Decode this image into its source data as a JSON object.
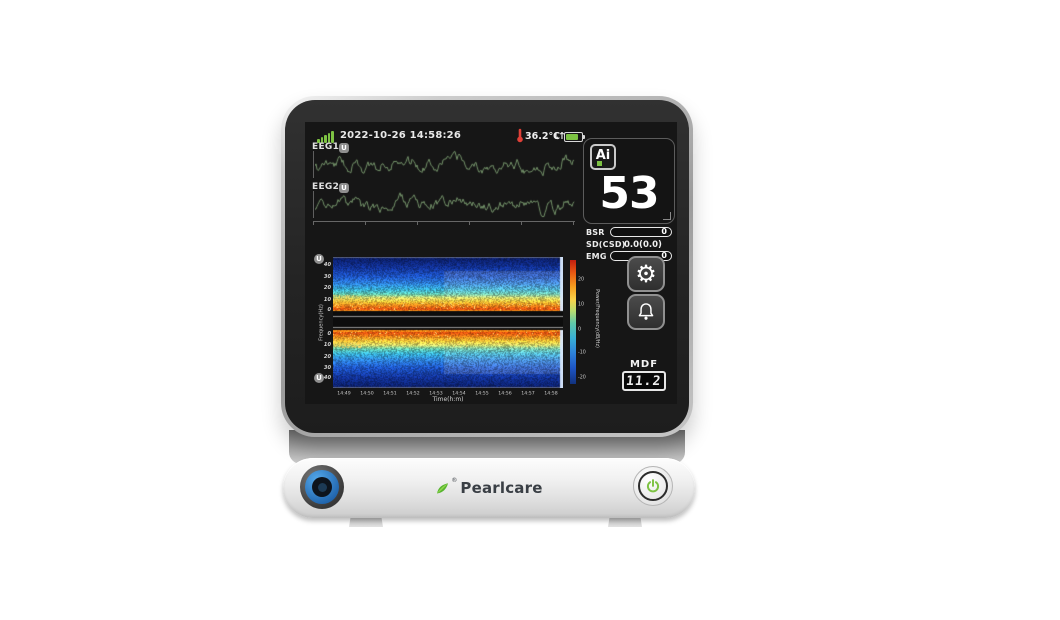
{
  "device": {
    "brand": "Pearlcare",
    "registered_mark": "®"
  },
  "status_bar": {
    "datetime": "2022-10-26 14:58:26",
    "temperature": "36.2℃",
    "sync_arrows": "↓↑"
  },
  "eeg": {
    "ch1_label": "EEG1",
    "ch2_label": "EEG2",
    "channel_icon_glyph": "U"
  },
  "ai_panel": {
    "badge": "Ai",
    "value": "53"
  },
  "metrics": {
    "rows": [
      {
        "label": "BSR",
        "value": "0"
      },
      {
        "label": "SD(CSD)",
        "value": "0.0(0.0)"
      },
      {
        "label": "EMG",
        "value": "0"
      }
    ]
  },
  "side_buttons": {
    "settings_glyph": "⚙"
  },
  "mdf": {
    "label": "MDF",
    "value": "11.2"
  },
  "spectrogram": {
    "ylabel": "Frequency(Hz)",
    "yticks_top": [
      "40",
      "30",
      "20",
      "10",
      "0"
    ],
    "yticks_bottom": [
      "0",
      "10",
      "20",
      "30",
      "40"
    ],
    "xlabel": "Time(h:m)",
    "xticks": [
      "14:49",
      "14:50",
      "14:51",
      "14:52",
      "14:53",
      "14:54",
      "14:55",
      "14:56",
      "14:57",
      "14:58"
    ],
    "colorbar_label": "Power/Frequency(dB/Hz)",
    "colorbar_ticks": [
      "20",
      "10",
      "0",
      "-10",
      "-20"
    ]
  },
  "colors": {
    "accent_green": "#7dc243",
    "alarm_red": "#e04038",
    "knob_blue": "#2f86d6",
    "screen_bg": "#161616",
    "trace_green": "#74936a"
  },
  "chart_data": [
    {
      "type": "line",
      "name": "EEG1",
      "description": "raw EEG waveform trace, unlabeled amplitude axis",
      "color": "#74936a",
      "seed": 7
    },
    {
      "type": "line",
      "name": "EEG2",
      "description": "raw EEG waveform trace, unlabeled amplitude axis",
      "color": "#74936a",
      "seed": 13
    },
    {
      "type": "heatmap",
      "name": "mirrored EEG density spectral array (EEG1 top, EEG2 bottom)",
      "xlabel": "Time(h:m)",
      "x_range": [
        "14:49",
        "14:58"
      ],
      "ylabel": "Frequency(Hz)",
      "y_range_hz": [
        0,
        47
      ],
      "colorbar_label": "Power/Frequency(dB/Hz)",
      "colorbar_range_db": [
        -20,
        20
      ],
      "freq_color_stops": [
        {
          "hz": 0,
          "rgb": [
            232,
            62,
            12
          ]
        },
        {
          "hz": 3,
          "rgb": [
            236,
            96,
            18
          ]
        },
        {
          "hz": 6,
          "rgb": [
            246,
            152,
            32
          ]
        },
        {
          "hz": 9,
          "rgb": [
            250,
            206,
            62
          ]
        },
        {
          "hz": 12,
          "rgb": [
            210,
            220,
            110
          ]
        },
        {
          "hz": 15,
          "rgb": [
            96,
            198,
            172
          ]
        },
        {
          "hz": 19,
          "rgb": [
            56,
            176,
            214
          ]
        },
        {
          "hz": 24,
          "rgb": [
            46,
            130,
            219
          ]
        },
        {
          "hz": 30,
          "rgb": [
            30,
            86,
            198
          ]
        },
        {
          "hz": 38,
          "rgb": [
            18,
            50,
            150
          ]
        },
        {
          "hz": 47,
          "rgb": [
            10,
            28,
            100
          ]
        }
      ],
      "seed": 99
    }
  ]
}
